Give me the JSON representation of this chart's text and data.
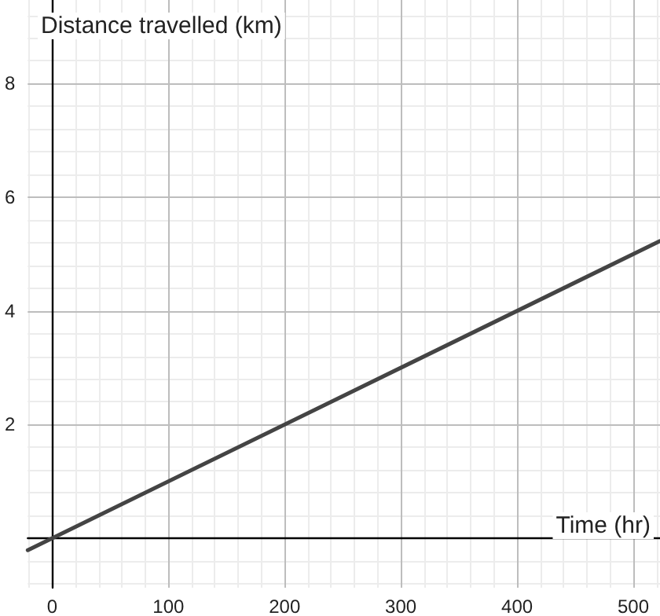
{
  "chart_data": {
    "type": "line",
    "xlabel": "Time (hr)",
    "ylabel": "Distance travelled (km)",
    "x": [
      -21,
      523
    ],
    "series": [
      {
        "color": "#444444",
        "values": [
          -0.21,
          5.23
        ]
      }
    ],
    "xlim": [
      -21,
      523
    ],
    "ylim": [
      -0.87,
      9.47
    ],
    "xticks": [
      0,
      100,
      200,
      300,
      400,
      500
    ],
    "yticks": [
      2,
      4,
      6,
      8
    ],
    "grid": true,
    "marker": "none",
    "line_style": "solid"
  }
}
